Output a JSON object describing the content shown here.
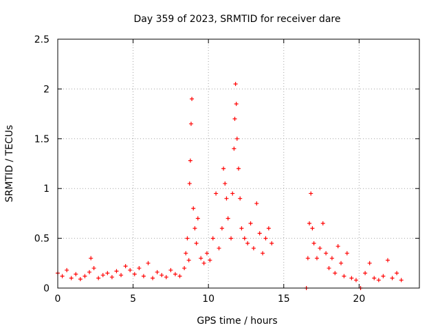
{
  "chart_data": {
    "type": "scatter",
    "title": "Day 359 of 2023, SRMTID for receiver dare",
    "xlabel": "GPS time / hours",
    "ylabel": "SRMTID / TECUs",
    "xlim": [
      0,
      24
    ],
    "ylim": [
      0,
      2.5
    ],
    "x_ticks": [
      0,
      5,
      10,
      15,
      20
    ],
    "x_tick_labels": [
      "0",
      "5",
      "10",
      "15",
      "20"
    ],
    "y_ticks": [
      0,
      0.5,
      1,
      1.5,
      2,
      2.5
    ],
    "y_tick_labels": [
      "0",
      "0.5",
      "1",
      "1.5",
      "2",
      "2.5"
    ],
    "grid": true,
    "marker": "plus",
    "marker_color": "#ff0000",
    "series": [
      {
        "name": "SRMTID",
        "x": [
          0.0,
          0.3,
          0.6,
          0.9,
          1.2,
          1.5,
          1.8,
          2.1,
          2.2,
          2.4,
          2.7,
          3.0,
          3.3,
          3.6,
          3.9,
          4.2,
          4.5,
          4.8,
          5.1,
          5.4,
          5.7,
          6.0,
          6.3,
          6.6,
          6.9,
          7.2,
          7.5,
          7.8,
          8.1,
          8.4,
          8.5,
          8.6,
          8.7,
          8.75,
          8.8,
          8.85,
          8.9,
          9.0,
          9.1,
          9.2,
          9.3,
          9.5,
          9.7,
          9.9,
          10.1,
          10.3,
          10.5,
          10.7,
          10.9,
          11.0,
          11.1,
          11.2,
          11.3,
          11.5,
          11.6,
          11.7,
          11.75,
          11.8,
          11.85,
          11.9,
          12.0,
          12.1,
          12.2,
          12.4,
          12.6,
          12.8,
          13.0,
          13.2,
          13.4,
          13.6,
          13.8,
          14.0,
          14.2,
          16.5,
          16.6,
          16.7,
          16.8,
          16.9,
          17.0,
          17.2,
          17.4,
          17.6,
          17.8,
          18.0,
          18.2,
          18.4,
          18.6,
          18.8,
          19.0,
          19.2,
          19.5,
          19.8,
          20.1,
          20.4,
          20.7,
          21.0,
          21.3,
          21.6,
          21.9,
          22.2,
          22.5,
          22.8
        ],
        "y": [
          0.15,
          0.12,
          0.18,
          0.1,
          0.14,
          0.09,
          0.12,
          0.16,
          0.3,
          0.2,
          0.1,
          0.13,
          0.15,
          0.11,
          0.17,
          0.13,
          0.22,
          0.18,
          0.14,
          0.2,
          0.12,
          0.25,
          0.1,
          0.16,
          0.13,
          0.11,
          0.18,
          0.14,
          0.12,
          0.2,
          0.35,
          0.5,
          0.28,
          1.05,
          1.28,
          1.65,
          1.9,
          0.8,
          0.6,
          0.45,
          0.7,
          0.3,
          0.25,
          0.35,
          0.28,
          0.5,
          0.95,
          0.4,
          0.6,
          1.2,
          1.05,
          0.9,
          0.7,
          0.5,
          0.95,
          1.4,
          1.7,
          2.05,
          1.85,
          1.5,
          1.2,
          0.9,
          0.6,
          0.5,
          0.45,
          0.65,
          0.4,
          0.85,
          0.55,
          0.35,
          0.5,
          0.6,
          0.45,
          0.0,
          0.3,
          0.65,
          0.95,
          0.6,
          0.45,
          0.3,
          0.4,
          0.65,
          0.35,
          0.2,
          0.3,
          0.15,
          0.42,
          0.25,
          0.12,
          0.35,
          0.1,
          0.08,
          0.0,
          0.15,
          0.25,
          0.1,
          0.08,
          0.12,
          0.28,
          0.1,
          0.15,
          0.08
        ]
      }
    ]
  }
}
